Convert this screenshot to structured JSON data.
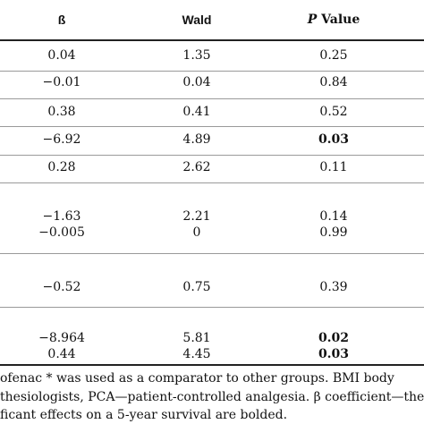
{
  "table": {
    "headers": {
      "beta": "ß",
      "wald": "Wald",
      "p_italic": "P",
      "p_rest": " Value"
    },
    "rows": [
      {
        "beta": "0.04",
        "wald": "1.35",
        "p": "0.25",
        "p_bold": false
      },
      {
        "beta": "−0.01",
        "wald": "0.04",
        "p": "0.84",
        "p_bold": false
      },
      {
        "beta": "0.38",
        "wald": "0.41",
        "p": "0.52",
        "p_bold": false
      },
      {
        "beta": "−6.92",
        "wald": "4.89",
        "p": "0.03",
        "p_bold": true
      },
      {
        "beta": "0.28",
        "wald": "2.62",
        "p": "0.11",
        "p_bold": false
      },
      {
        "beta": "−1.63",
        "wald": "2.21",
        "p": "0.14",
        "p_bold": false
      },
      {
        "beta": "−0.005",
        "wald": "0",
        "p": "0.99",
        "p_bold": false
      },
      {
        "beta": "−0.52",
        "wald": "0.75",
        "p": "0.39",
        "p_bold": false
      },
      {
        "beta": "−8.964",
        "wald": "5.81",
        "p": "0.02",
        "p_bold": true
      },
      {
        "beta": "0.44",
        "wald": "4.45",
        "p": "0.03",
        "p_bold": true
      }
    ]
  },
  "footnote": {
    "line1": "ofenac * was used as a comparator to other groups.  BMI body",
    "line2": "thesiologists, PCA—patient-controlled analgesia. β coefficient—the",
    "line3": "ficant effects on a 5-year survival are bolded."
  }
}
